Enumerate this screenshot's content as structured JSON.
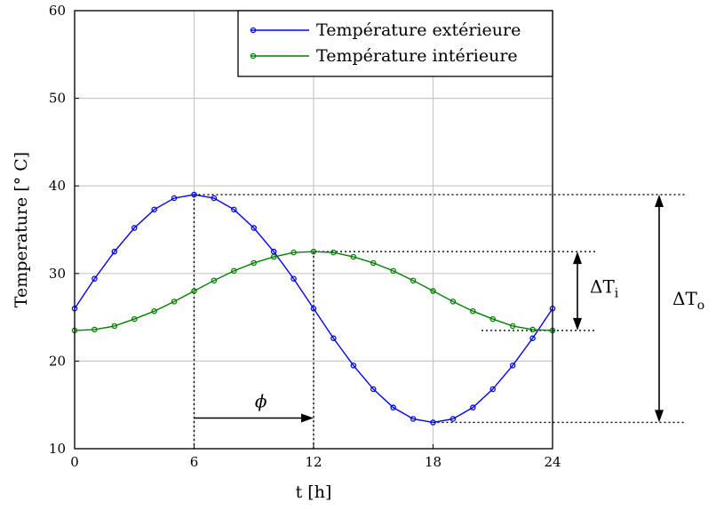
{
  "chart_data": {
    "type": "line",
    "xlabel": "t [h]",
    "ylabel": "Temperature [° C]",
    "xlim": [
      0,
      24
    ],
    "ylim": [
      10,
      60
    ],
    "xticks": [
      0,
      6,
      12,
      18,
      24
    ],
    "yticks": [
      10,
      20,
      30,
      40,
      50,
      60
    ],
    "grid": true,
    "legend_position": "top-right",
    "x": [
      0,
      1,
      2,
      3,
      4,
      5,
      6,
      7,
      8,
      9,
      10,
      11,
      12,
      13,
      14,
      15,
      16,
      17,
      18,
      19,
      20,
      21,
      22,
      23,
      24
    ],
    "series": [
      {
        "name": "Température extérieure",
        "color": "#0000ff",
        "marker": "circle",
        "values": [
          26.0,
          29.4,
          32.5,
          35.2,
          37.3,
          38.6,
          39.0,
          38.6,
          37.3,
          35.2,
          32.5,
          29.4,
          26.0,
          22.6,
          19.5,
          16.8,
          14.7,
          13.4,
          13.0,
          13.4,
          14.7,
          16.8,
          19.5,
          22.6,
          26.0
        ]
      },
      {
        "name": "Température intérieure",
        "color": "#008000",
        "marker": "circle",
        "values": [
          23.5,
          23.6,
          24.0,
          24.8,
          25.7,
          26.8,
          28.0,
          29.2,
          30.3,
          31.2,
          31.9,
          32.4,
          32.5,
          32.4,
          31.9,
          31.2,
          30.3,
          29.2,
          28.0,
          26.8,
          25.7,
          24.8,
          24.0,
          23.6,
          23.5
        ]
      }
    ],
    "annotations": {
      "phase_label": "ϕ",
      "phase_from_x": 6,
      "phase_to_x": 12,
      "phase_arrow_y": 13.5,
      "delta_inner_label": "ΔT",
      "delta_inner_sub": "i",
      "delta_inner_range": [
        23.5,
        32.5
      ],
      "delta_outer_label": "ΔT",
      "delta_outer_sub": "o",
      "delta_outer_range": [
        13.0,
        39.0
      ]
    }
  }
}
